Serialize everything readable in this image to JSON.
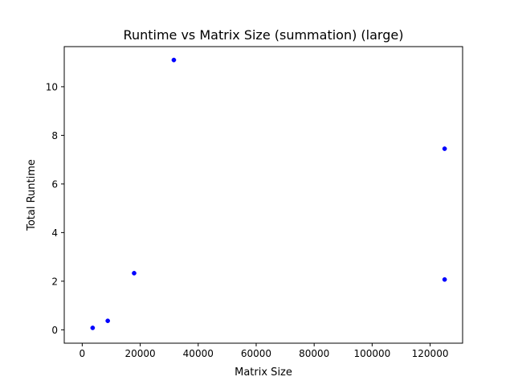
{
  "chart_data": {
    "type": "scatter",
    "title": "Runtime vs Matrix Size (summation) (large)",
    "xlabel": "Matrix Size",
    "ylabel": "Total Runtime",
    "xlim": [
      -6200,
      131200
    ],
    "ylim": [
      -0.55,
      11.65
    ],
    "xticks": [
      0,
      20000,
      40000,
      60000,
      80000,
      100000,
      120000
    ],
    "xtick_labels": [
      "0",
      "20000",
      "40000",
      "60000",
      "80000",
      "100000",
      "120000"
    ],
    "yticks": [
      0,
      2,
      4,
      6,
      8,
      10
    ],
    "ytick_labels": [
      "0",
      "2",
      "4",
      "6",
      "8",
      "10"
    ],
    "grid": false,
    "legend": "none",
    "marker_color": "#0000ff",
    "points": [
      {
        "x": 3600,
        "y": 0.08
      },
      {
        "x": 8800,
        "y": 0.37
      },
      {
        "x": 17900,
        "y": 2.33
      },
      {
        "x": 31600,
        "y": 11.1
      },
      {
        "x": 125000,
        "y": 7.45
      },
      {
        "x": 125000,
        "y": 2.07
      }
    ]
  }
}
